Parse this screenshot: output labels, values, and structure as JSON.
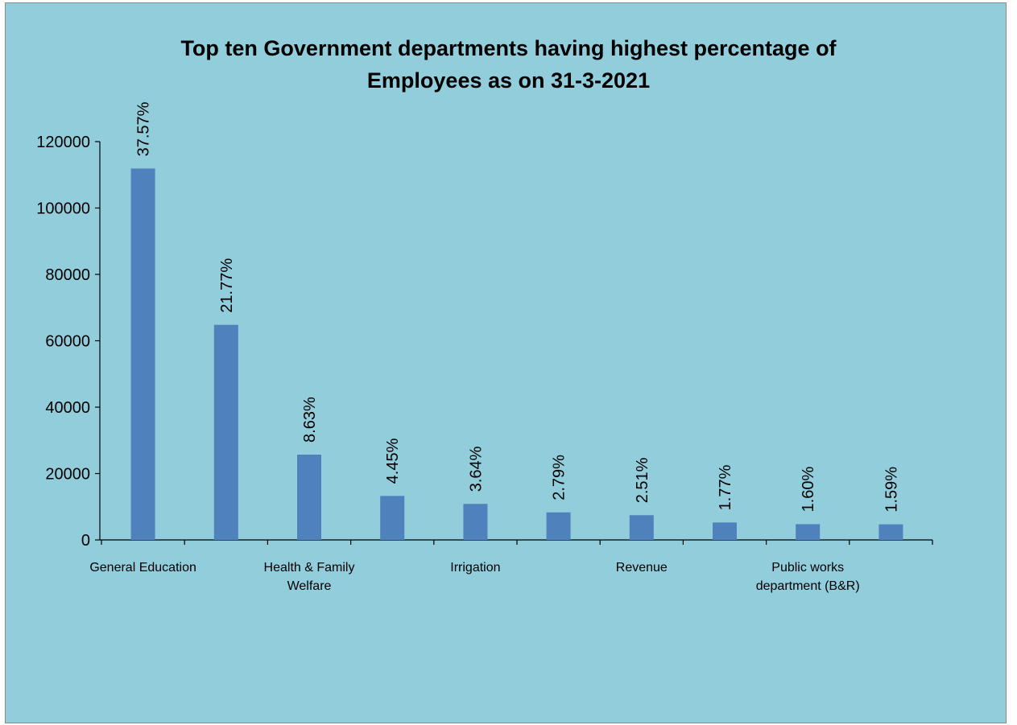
{
  "chart_data": {
    "type": "bar",
    "title_lines": [
      "Top ten Government departments having highest percentage of",
      "Employees as on 31-3-2021"
    ],
    "bars": [
      {
        "value": 111900,
        "label": "37.57%"
      },
      {
        "value": 64800,
        "label": "21.77%"
      },
      {
        "value": 25700,
        "label": "8.63%"
      },
      {
        "value": 13250,
        "label": "4.45%"
      },
      {
        "value": 10850,
        "label": "3.64%"
      },
      {
        "value": 8300,
        "label": "2.79%"
      },
      {
        "value": 7450,
        "label": "2.51%"
      },
      {
        "value": 5250,
        "label": "1.77%"
      },
      {
        "value": 4750,
        "label": "1.60%"
      },
      {
        "value": 4700,
        "label": "1.59%"
      }
    ],
    "category_labels": [
      {
        "index": 0,
        "lines": [
          "General Education"
        ]
      },
      {
        "index": 2,
        "lines": [
          "Health & Family",
          "Welfare"
        ]
      },
      {
        "index": 4,
        "lines": [
          "Irrigation"
        ]
      },
      {
        "index": 6,
        "lines": [
          "Revenue"
        ]
      },
      {
        "index": 8,
        "lines": [
          "Public works",
          "department (B&R)"
        ]
      }
    ],
    "yticks": [
      "0",
      "20000",
      "40000",
      "60000",
      "80000",
      "100000",
      "120000"
    ],
    "ylim": [
      0,
      120000
    ],
    "bar_color": "#4F81BD",
    "background_color": "#92CDDC"
  }
}
